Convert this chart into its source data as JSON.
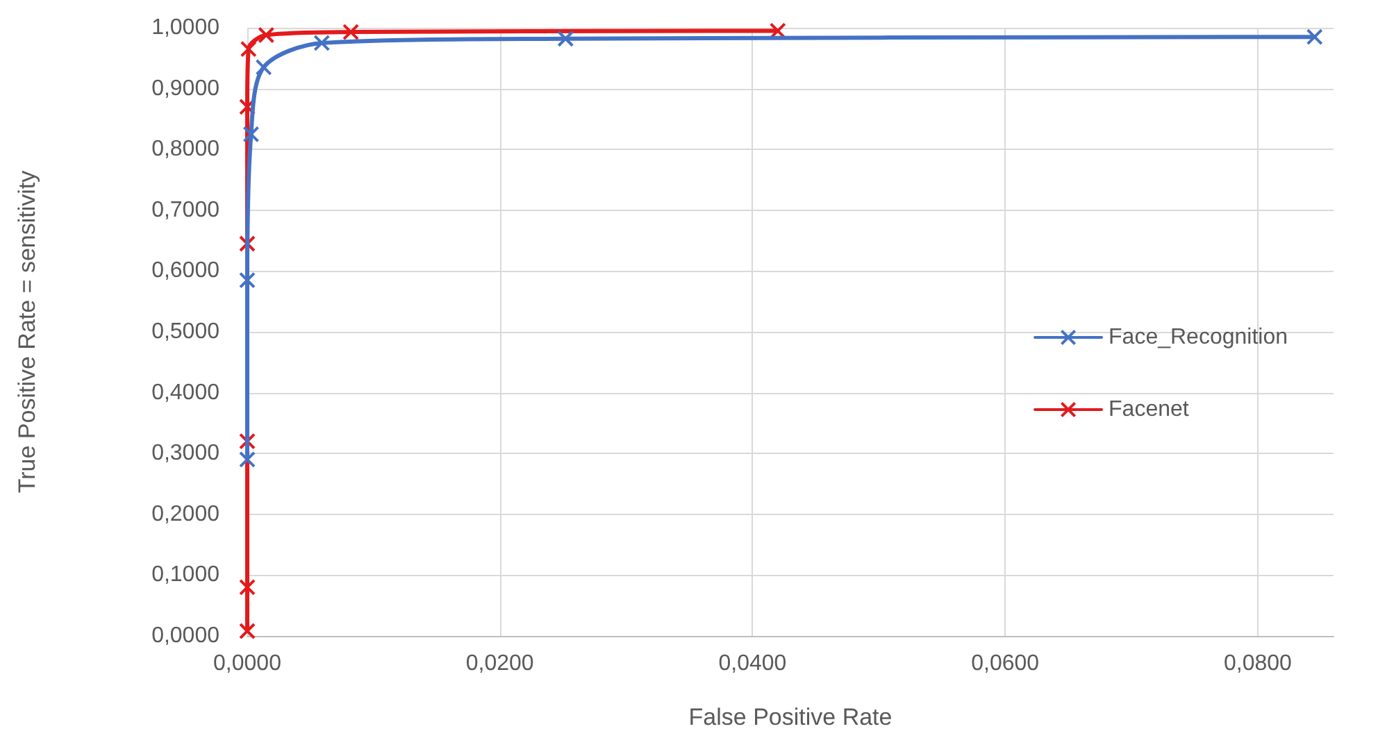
{
  "chart_data": {
    "type": "line",
    "xlabel": "False Positive Rate",
    "ylabel": "True Positive Rate = sensitivity",
    "series": [
      {
        "name": "Face_Recognition",
        "color": "#4472c4",
        "x": [
          0,
          0,
          0.0003,
          0.0013,
          0.0059,
          0.0252,
          0.0845
        ],
        "values": [
          0.29,
          0.585,
          0.825,
          0.935,
          0.975,
          0.982,
          0.985
        ]
      },
      {
        "name": "Facenet",
        "color": "#e31a1c",
        "x": [
          0,
          0,
          0,
          0,
          0,
          0.0001,
          0.0015,
          0.0082,
          0.042
        ],
        "values": [
          0.008,
          0.08,
          0.32,
          0.645,
          0.87,
          0.965,
          0.988,
          0.993,
          0.995
        ]
      }
    ],
    "xlim": [
      0,
      0.086
    ],
    "xticks": [
      {
        "value": 0,
        "label": "0,0000"
      },
      {
        "value": 0.02,
        "label": "0,0200"
      },
      {
        "value": 0.04,
        "label": "0,0400"
      },
      {
        "value": 0.06,
        "label": "0,0600"
      },
      {
        "value": 0.08,
        "label": "0,0800"
      }
    ],
    "ylim": [
      0,
      1
    ],
    "yticks": [
      {
        "value": 0,
        "label": "0,0000"
      },
      {
        "value": 0.1,
        "label": "0,1000"
      },
      {
        "value": 0.2,
        "label": "0,2000"
      },
      {
        "value": 0.3,
        "label": "0,3000"
      },
      {
        "value": 0.4,
        "label": "0,4000"
      },
      {
        "value": 0.5,
        "label": "0,5000"
      },
      {
        "value": 0.6,
        "label": "0,6000"
      },
      {
        "value": 0.7,
        "label": "0,7000"
      },
      {
        "value": 0.8,
        "label": "0,8000"
      },
      {
        "value": 0.9,
        "label": "0,9000"
      },
      {
        "value": 1,
        "label": "1,0000"
      }
    ],
    "grid": true,
    "legend": "right",
    "marker": "cross",
    "line_style": "solid"
  }
}
